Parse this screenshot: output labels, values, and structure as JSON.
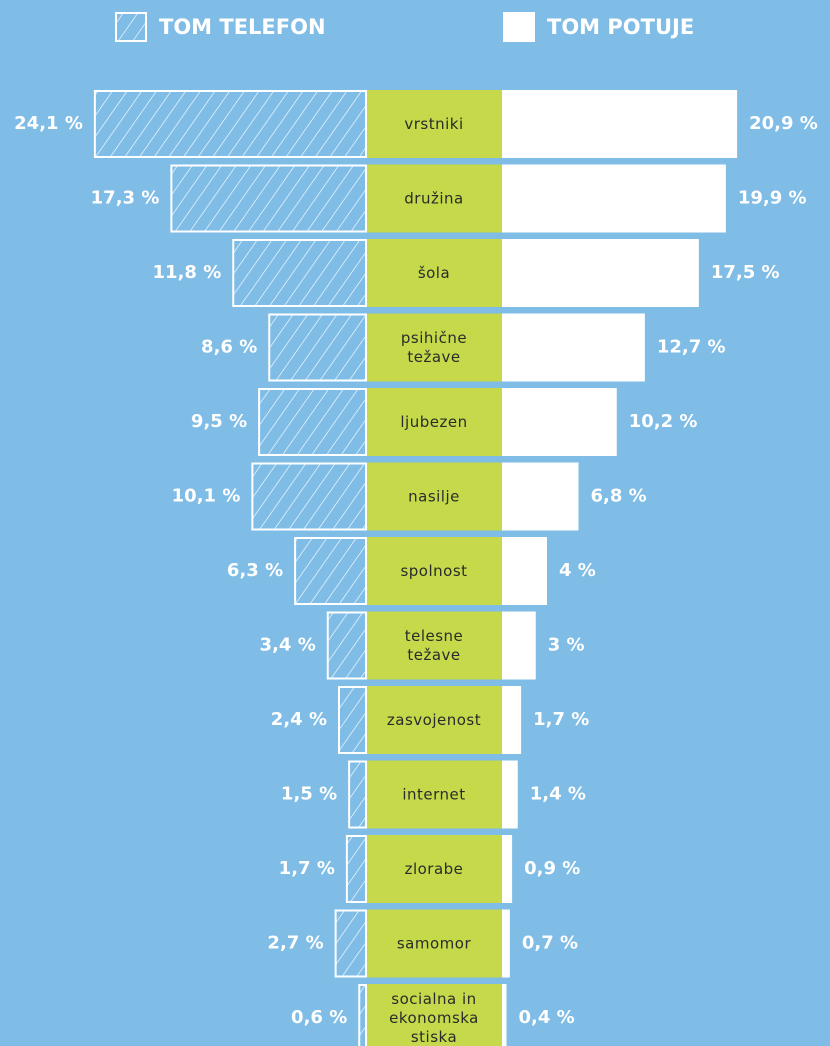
{
  "chart_data": {
    "type": "butterfly",
    "categories": [
      "vrstniki",
      "družina",
      "šola",
      "psihične težave",
      "ljubezen",
      "nasilje",
      "spolnost",
      "telesne težave",
      "zasvojenost",
      "internet",
      "zlorabe",
      "samomor",
      "socialna in ekonomska stiska"
    ],
    "series": [
      {
        "name": "TOM TELEFON",
        "color": "#ffffff",
        "pattern": "hatch",
        "values": [
          24.1,
          17.3,
          11.8,
          8.6,
          9.5,
          10.1,
          6.3,
          3.4,
          2.4,
          1.5,
          1.7,
          2.7,
          0.6
        ],
        "value_labels": [
          "24,1 %",
          "17,3 %",
          "11,8 %",
          "8,6 %",
          "9,5 %",
          "10,1 %",
          "6,3 %",
          "3,4 %",
          "2,4 %",
          "1,5 %",
          "1,7 %",
          "2,7 %",
          "0,6 %"
        ]
      },
      {
        "name": "TOM POTUJE",
        "color": "#ffffff",
        "pattern": "solid",
        "values": [
          20.9,
          19.9,
          17.5,
          12.7,
          10.2,
          6.8,
          4,
          3,
          1.7,
          1.4,
          0.9,
          0.7,
          0.4
        ],
        "value_labels": [
          "20,9 %",
          "19,9 %",
          "17,5 %",
          "12,7 %",
          "10,2 %",
          "6,8 %",
          "4 %",
          "3 %",
          "1,7 %",
          "1,4 %",
          "0,9 %",
          "0,7 %",
          "0,4 %"
        ]
      }
    ],
    "category_color": "#c5d94a"
  }
}
